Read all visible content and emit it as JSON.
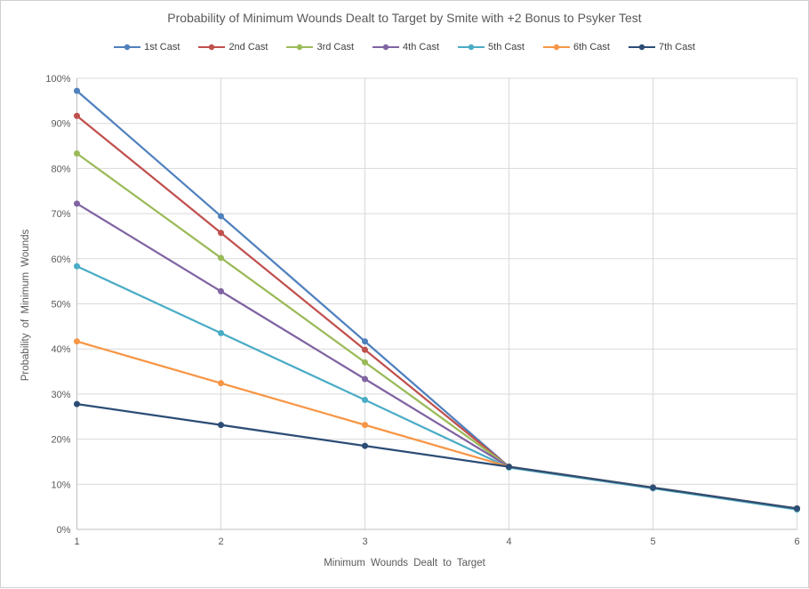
{
  "chart": {
    "title": "Probability of Minimum Wounds Dealt to Target by Smite with +2 Bonus to Psyker Test",
    "x_axis_title": "Minimum  Wounds  Dealt to Target",
    "y_axis_title": "Probability of Minimum  Wounds"
  },
  "chart_data": {
    "type": "line",
    "title": "Probability of Minimum Wounds Dealt to Target by Smite with +2 Bonus to Psyker Test",
    "xlabel": "Minimum Wounds Dealt to Target",
    "ylabel": "Probability of Minimum Wounds",
    "x": [
      1,
      2,
      3,
      4,
      5,
      6
    ],
    "x_ticks": [
      "1",
      "2",
      "3",
      "4",
      "5",
      "6"
    ],
    "y_ticks": [
      "0%",
      "10%",
      "20%",
      "30%",
      "40%",
      "50%",
      "60%",
      "70%",
      "80%",
      "90%",
      "100%"
    ],
    "xlim": [
      1,
      6
    ],
    "ylim": [
      0,
      100
    ],
    "grid": true,
    "legend_position": "top",
    "marker": "circle",
    "series": [
      {
        "name": "1st Cast",
        "color": "#4F81BD",
        "values": [
          97.22,
          69.44,
          41.67,
          13.89,
          9.26,
          4.63
        ]
      },
      {
        "name": "2nd Cast",
        "color": "#C0504D",
        "values": [
          91.67,
          65.74,
          39.81,
          13.89,
          9.26,
          4.63
        ]
      },
      {
        "name": "3rd Cast",
        "color": "#9BBB59",
        "values": [
          83.33,
          60.19,
          37.04,
          13.89,
          9.26,
          4.63
        ]
      },
      {
        "name": "4th Cast",
        "color": "#8064A2",
        "values": [
          72.22,
          52.78,
          33.33,
          13.89,
          9.26,
          4.63
        ]
      },
      {
        "name": "5th Cast",
        "color": "#4BACC6",
        "values": [
          58.33,
          43.52,
          28.7,
          13.7,
          9.1,
          4.4
        ]
      },
      {
        "name": "6th Cast",
        "color": "#F79646",
        "values": [
          41.67,
          32.41,
          23.15,
          13.89,
          9.26,
          4.63
        ]
      },
      {
        "name": "7th Cast",
        "color": "#2C4D75",
        "values": [
          27.78,
          23.15,
          18.52,
          13.89,
          9.26,
          4.63
        ]
      }
    ],
    "colors": {
      "gridline": "#D9D9D9",
      "axis_line": "#BFBFBF",
      "tick_label": "#595959",
      "title_text": "#595959",
      "legend_text": "#404040",
      "background": "#FFFFFF",
      "frame_border": "#D0D0D0"
    }
  }
}
